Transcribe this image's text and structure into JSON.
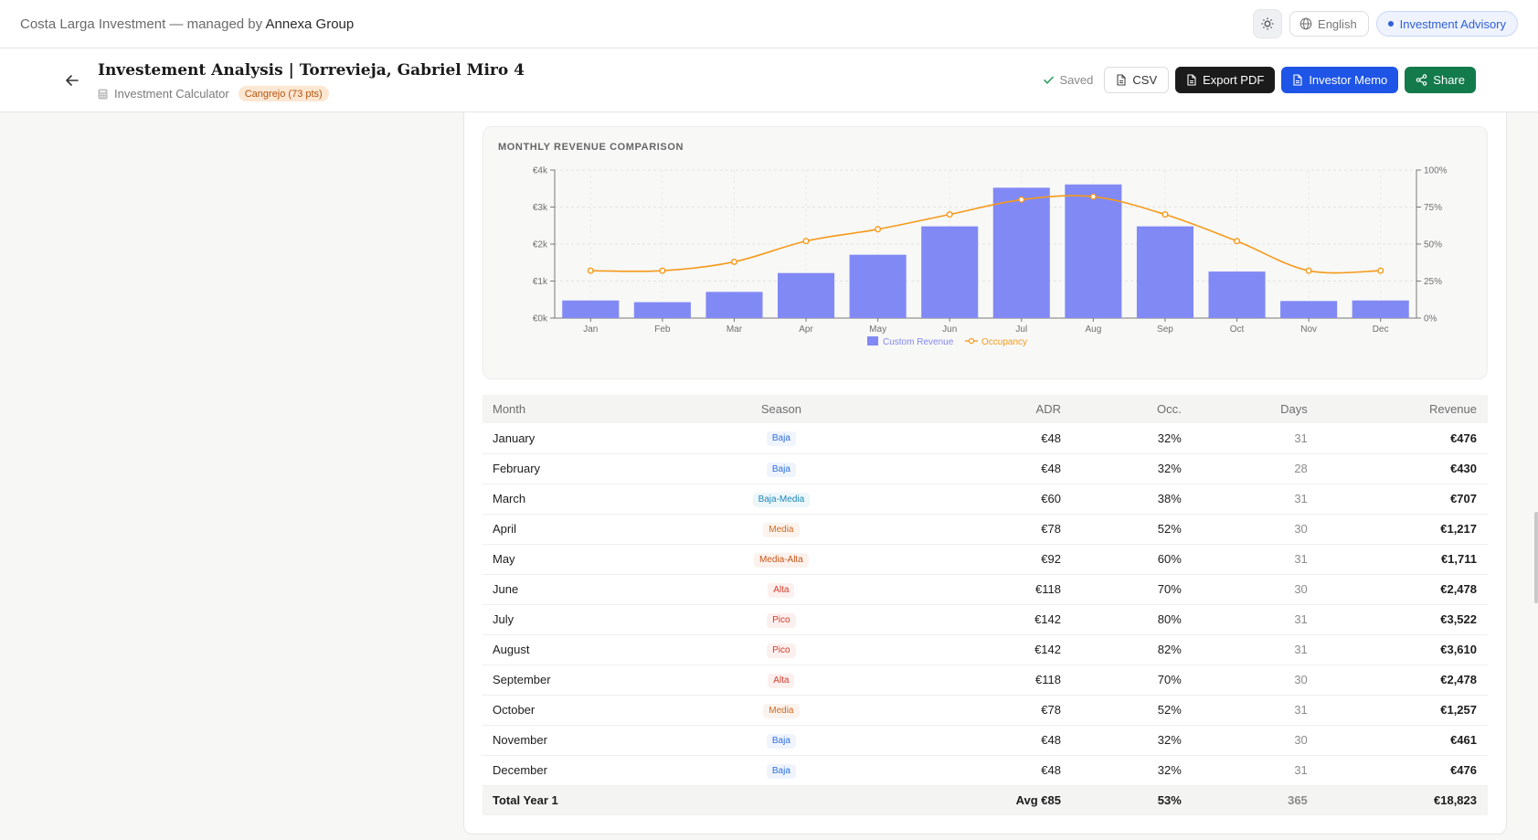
{
  "topbar": {
    "brand_prefix": "Costa Larga Investment — managed by",
    "brand_name": "Annexa Group",
    "language": "English",
    "mode": "Investment Advisory"
  },
  "header": {
    "title": "Investement Analysis | Torrevieja, Gabriel Miro 4",
    "calculator_label": "Investment Calculator",
    "score_badge": "Cangrejo (73 pts)",
    "saved_label": "Saved",
    "csv_label": "CSV",
    "export_pdf_label": "Export PDF",
    "investor_memo_label": "Investor Memo",
    "share_label": "Share"
  },
  "colors": {
    "bar": "#8189f5",
    "line": "#f59a1a",
    "baja": "#2f6fe0",
    "baja_media": "#1f87b8",
    "media": "#d2691e",
    "media_alta": "#c8551a",
    "alta": "#d63a2a",
    "pico": "#d63a2a"
  },
  "chart_data": {
    "type": "bar",
    "title": "MONTHLY REVENUE COMPARISON",
    "categories": [
      "Jan",
      "Feb",
      "Mar",
      "Apr",
      "May",
      "Jun",
      "Jul",
      "Aug",
      "Sep",
      "Oct",
      "Nov",
      "Dec"
    ],
    "series": [
      {
        "name": "Custom Revenue",
        "type": "bar",
        "axis": "left",
        "values": [
          476,
          430,
          707,
          1217,
          1711,
          2478,
          3522,
          3610,
          2478,
          1257,
          461,
          476
        ]
      },
      {
        "name": "Occupancy",
        "type": "line",
        "axis": "right",
        "values": [
          32,
          32,
          38,
          52,
          60,
          70,
          80,
          82,
          70,
          52,
          32,
          32
        ]
      }
    ],
    "y_left": {
      "ticks": [
        "€0k",
        "€1k",
        "€2k",
        "€3k",
        "€4k"
      ],
      "ylim": [
        0,
        4000
      ]
    },
    "y_right": {
      "ticks": [
        "0%",
        "25%",
        "50%",
        "75%",
        "100%"
      ],
      "ylim": [
        0,
        100
      ]
    },
    "grid": true,
    "legend": "bottom-center"
  },
  "table": {
    "headers": {
      "month": "Month",
      "season": "Season",
      "adr": "ADR",
      "occ": "Occ.",
      "days": "Days",
      "revenue": "Revenue"
    },
    "rows": [
      {
        "month": "January",
        "season": "Baja",
        "adr": "€48",
        "occ": "32%",
        "days": "31",
        "revenue": "€476"
      },
      {
        "month": "February",
        "season": "Baja",
        "adr": "€48",
        "occ": "32%",
        "days": "28",
        "revenue": "€430"
      },
      {
        "month": "March",
        "season": "Baja-Media",
        "adr": "€60",
        "occ": "38%",
        "days": "31",
        "revenue": "€707"
      },
      {
        "month": "April",
        "season": "Media",
        "adr": "€78",
        "occ": "52%",
        "days": "30",
        "revenue": "€1,217"
      },
      {
        "month": "May",
        "season": "Media-Alta",
        "adr": "€92",
        "occ": "60%",
        "days": "31",
        "revenue": "€1,711"
      },
      {
        "month": "June",
        "season": "Alta",
        "adr": "€118",
        "occ": "70%",
        "days": "30",
        "revenue": "€2,478"
      },
      {
        "month": "July",
        "season": "Pico",
        "adr": "€142",
        "occ": "80%",
        "days": "31",
        "revenue": "€3,522"
      },
      {
        "month": "August",
        "season": "Pico",
        "adr": "€142",
        "occ": "82%",
        "days": "31",
        "revenue": "€3,610"
      },
      {
        "month": "September",
        "season": "Alta",
        "adr": "€118",
        "occ": "70%",
        "days": "30",
        "revenue": "€2,478"
      },
      {
        "month": "October",
        "season": "Media",
        "adr": "€78",
        "occ": "52%",
        "days": "31",
        "revenue": "€1,257"
      },
      {
        "month": "November",
        "season": "Baja",
        "adr": "€48",
        "occ": "32%",
        "days": "30",
        "revenue": "€461"
      },
      {
        "month": "December",
        "season": "Baja",
        "adr": "€48",
        "occ": "32%",
        "days": "31",
        "revenue": "€476"
      }
    ],
    "total": {
      "month": "Total Year 1",
      "adr": "Avg €85",
      "occ": "53%",
      "days": "365",
      "revenue": "€18,823"
    }
  }
}
